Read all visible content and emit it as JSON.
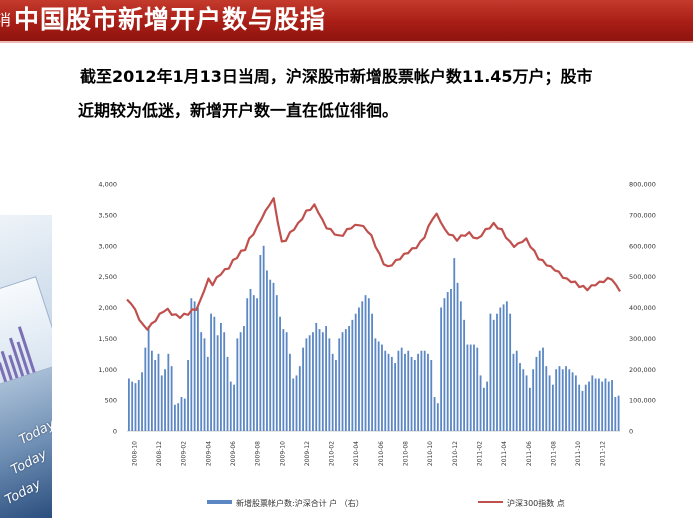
{
  "header": {
    "glyph": "消",
    "title": "中国股市新增开户数与股指"
  },
  "description": {
    "line1": "截至2012年1月13日当周，沪深股市新增股票帐户数11.45万户；股市",
    "line2": "近期较为低迷，新增开户数一直在低位徘徊。"
  },
  "decoration": {
    "word": "Today"
  },
  "chart_data": {
    "type": "bar+line",
    "title": "",
    "y_left": {
      "ticks": [
        "4,000",
        "3,500",
        "3,000",
        "2,500",
        "2,000",
        "1,500",
        "1,000",
        "500",
        "0"
      ],
      "range": [
        0,
        4000
      ]
    },
    "y_right": {
      "ticks": [
        "800,000",
        "700,000",
        "600,000",
        "500,000",
        "400,000",
        "300,000",
        "200,000",
        "100,000",
        "0"
      ],
      "range": [
        0,
        800000
      ]
    },
    "x_ticks": [
      "2008-10",
      "2008-12",
      "2009-02",
      "2009-04",
      "2009-06",
      "2009-08",
      "2009-10",
      "2009-12",
      "2010-02",
      "2010-04",
      "2010-06",
      "2010-08",
      "2010-10",
      "2010-12",
      "2011-02",
      "2011-04",
      "2011-06",
      "2011-08",
      "2011-10",
      "2011-12"
    ],
    "series": [
      {
        "name": "新增股票帐户数:沪深合计 户  （右）",
        "type": "bar",
        "axis": "right",
        "color": "#5b87c4",
        "values": [
          170000,
          160000,
          155000,
          165000,
          190000,
          270000,
          340000,
          260000,
          230000,
          250000,
          180000,
          200000,
          250000,
          210000,
          85000,
          90000,
          110000,
          105000,
          230000,
          430000,
          420000,
          400000,
          320000,
          300000,
          240000,
          380000,
          370000,
          310000,
          350000,
          320000,
          240000,
          160000,
          150000,
          300000,
          320000,
          340000,
          430000,
          460000,
          440000,
          430000,
          570000,
          600000,
          520000,
          490000,
          480000,
          440000,
          370000,
          330000,
          320000,
          250000,
          170000,
          180000,
          210000,
          270000,
          300000,
          310000,
          320000,
          350000,
          330000,
          320000,
          340000,
          300000,
          250000,
          230000,
          300000,
          320000,
          330000,
          340000,
          360000,
          380000,
          400000,
          420000,
          440000,
          430000,
          380000,
          300000,
          290000,
          280000,
          260000,
          250000,
          240000,
          220000,
          260000,
          270000,
          250000,
          260000,
          240000,
          230000,
          250000,
          260000,
          260000,
          250000,
          230000,
          110000,
          90000,
          400000,
          430000,
          450000,
          460000,
          560000,
          480000,
          420000,
          360000,
          280000,
          280000,
          280000,
          270000,
          180000,
          140000,
          160000,
          380000,
          360000,
          380000,
          400000,
          410000,
          420000,
          380000,
          250000,
          260000,
          220000,
          200000,
          180000,
          140000,
          200000,
          240000,
          260000,
          270000,
          210000,
          180000,
          150000,
          200000,
          210000,
          200000,
          210000,
          200000,
          190000,
          180000,
          150000,
          130000,
          150000,
          160000,
          180000,
          170000,
          170000,
          160000,
          170000,
          160000,
          165000,
          110000,
          114500
        ],
        "markers": [
          [
            -1,
            8000
          ]
        ]
      },
      {
        "name": "沪深300指数 点",
        "type": "line",
        "axis": "left",
        "color": "#c0504d",
        "values": [
          2110,
          2080,
          1950,
          1820,
          1700,
          1660,
          1720,
          1800,
          1880,
          1950,
          1960,
          1900,
          1870,
          1850,
          1880,
          1900,
          1950,
          1980,
          2100,
          2300,
          2450,
          2380,
          2470,
          2550,
          2600,
          2650,
          2750,
          2820,
          2900,
          2950,
          3100,
          3200,
          3300,
          3450,
          3550,
          3680,
          3750,
          3400,
          3050,
          3100,
          3200,
          3280,
          3350,
          3450,
          3550,
          3600,
          3650,
          3550,
          3400,
          3300,
          3250,
          3200,
          3150,
          3180,
          3250,
          3300,
          3320,
          3350,
          3300,
          3250,
          3150,
          3000,
          2850,
          2720,
          2650,
          2700,
          2750,
          2800,
          2850,
          2900,
          2940,
          2980,
          3050,
          3150,
          3300,
          3450,
          3500,
          3400,
          3250,
          3200,
          3150,
          3100,
          3150,
          3180,
          3200,
          3150,
          3100,
          3180,
          3250,
          3300,
          3350,
          3300,
          3250,
          3150,
          3050,
          3000,
          3020,
          3080,
          3100,
          3000,
          2900,
          2800,
          2750,
          2700,
          2650,
          2620,
          2560,
          2500,
          2450,
          2430,
          2400,
          2350,
          2330,
          2300,
          2340,
          2380,
          2400,
          2430,
          2460,
          2470,
          2350,
          2280
        ],
        "markers": [
          [
            -1,
            2300
          ]
        ]
      }
    ],
    "legend": {
      "position": "bottom",
      "bar_label": "新增股票帐户数:沪深合计 户  （右）",
      "line_label": "沪深300指数 点"
    },
    "grid": false
  }
}
